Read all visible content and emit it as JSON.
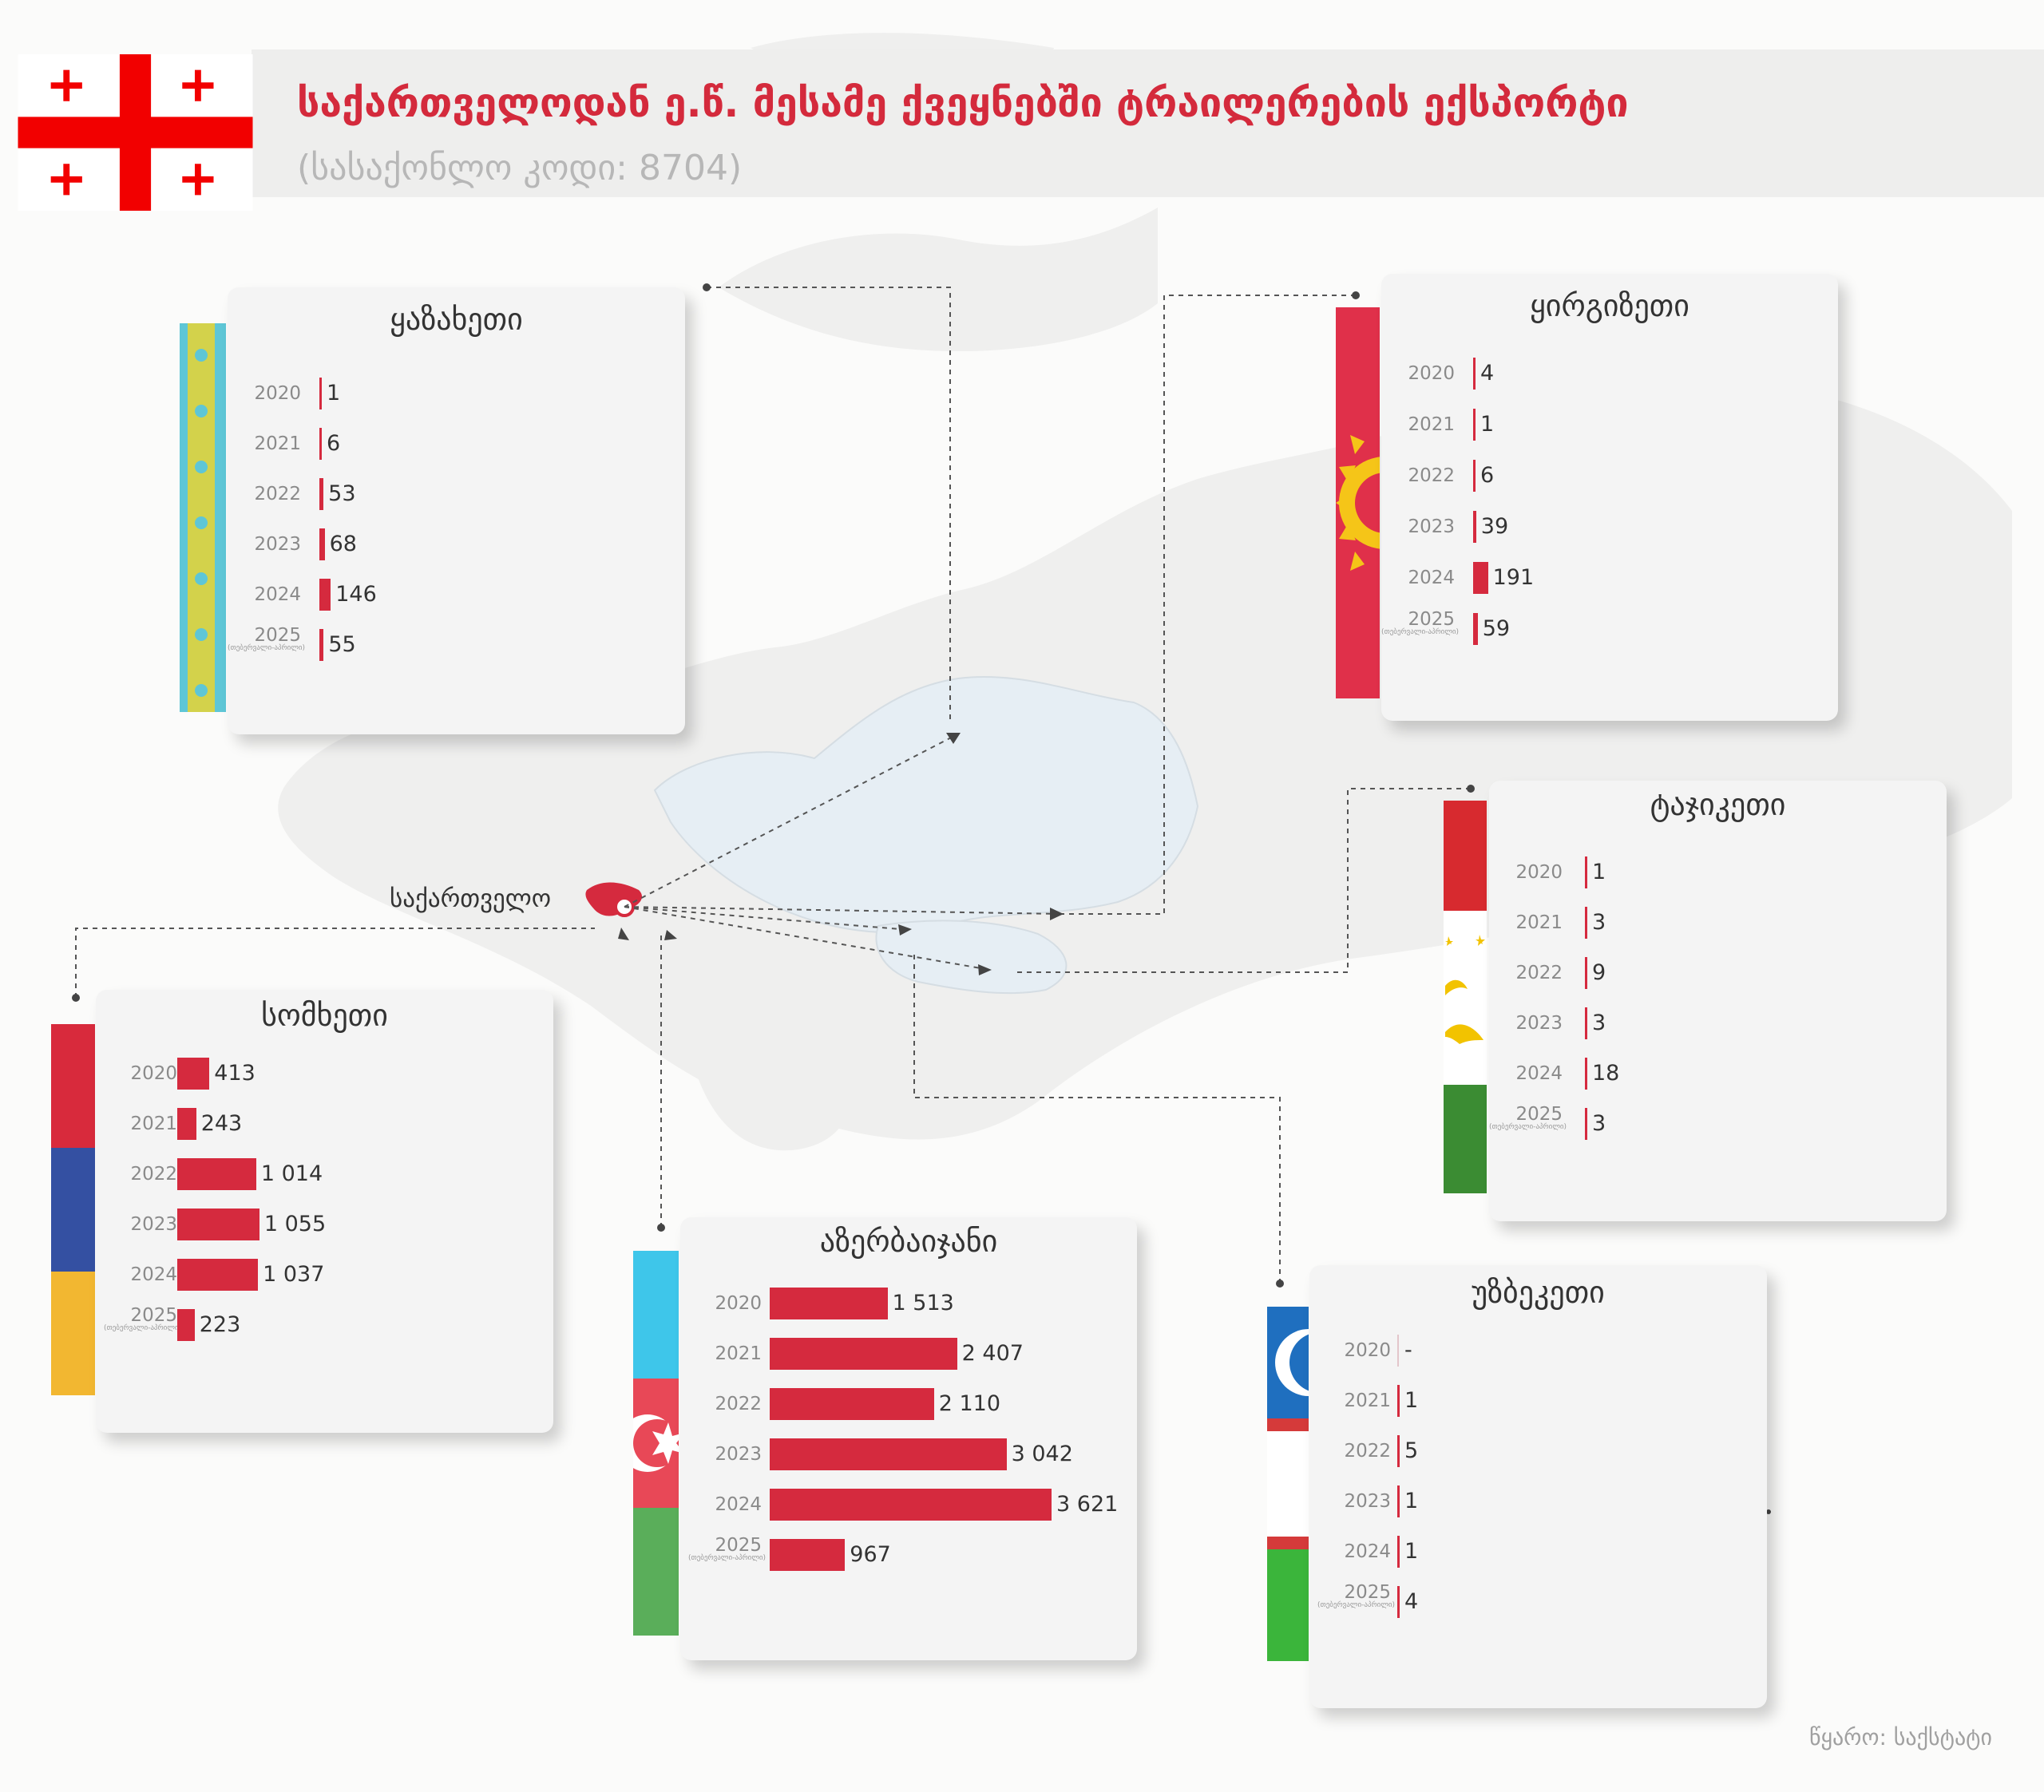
{
  "header": {
    "title": "საქართველოდან ე.წ. მესამე ქვეყნებში ტრაილერების ექსპორტი",
    "subtitle": "(სასაქონლო კოდი: 8704)"
  },
  "map_label": "საქართველო",
  "source": "წყარო: საქსტატი",
  "colors": {
    "accent": "#d52a3e",
    "title": "#d42a3c",
    "card_bg": "#f4f4f4"
  },
  "chart_data": [
    {
      "type": "bar",
      "country": "ყაზახეთი",
      "flag": "kazakhstan-flag",
      "categories": [
        "2020",
        "2021",
        "2022",
        "2023",
        "2024",
        "2025"
      ],
      "category_notes": [
        "",
        "",
        "",
        "",
        "",
        "(თებერვალი-აპრილი)"
      ],
      "values": [
        1,
        6,
        53,
        68,
        146,
        55
      ],
      "labels": [
        "1",
        "6",
        "53",
        "68",
        "146",
        "55"
      ]
    },
    {
      "type": "bar",
      "country": "ყირგიზეთი",
      "flag": "kyrgyzstan-flag",
      "categories": [
        "2020",
        "2021",
        "2022",
        "2023",
        "2024",
        "2025"
      ],
      "category_notes": [
        "",
        "",
        "",
        "",
        "",
        "(თებერვალი-აპრილი)"
      ],
      "values": [
        4,
        1,
        6,
        39,
        191,
        59
      ],
      "labels": [
        "4",
        "1",
        "6",
        "39",
        "191",
        "59"
      ]
    },
    {
      "type": "bar",
      "country": "ტაჯიკეთი",
      "flag": "tajikistan-flag",
      "categories": [
        "2020",
        "2021",
        "2022",
        "2023",
        "2024",
        "2025"
      ],
      "category_notes": [
        "",
        "",
        "",
        "",
        "",
        "(თებერვალი-აპრილი)"
      ],
      "values": [
        1,
        3,
        9,
        3,
        18,
        3
      ],
      "labels": [
        "1",
        "3",
        "9",
        "3",
        "18",
        "3"
      ]
    },
    {
      "type": "bar",
      "country": "სომხეთი",
      "flag": "armenia-flag",
      "categories": [
        "2020",
        "2021",
        "2022",
        "2023",
        "2024",
        "2025"
      ],
      "category_notes": [
        "",
        "",
        "",
        "",
        "",
        "(თებერვალი-აპრილი)"
      ],
      "values": [
        413,
        243,
        1014,
        1055,
        1037,
        223
      ],
      "labels": [
        "413",
        "243",
        "1 014",
        "1 055",
        "1 037",
        "223"
      ]
    },
    {
      "type": "bar",
      "country": "აზერბაიჯანი",
      "flag": "azerbaijan-flag",
      "categories": [
        "2020",
        "2021",
        "2022",
        "2023",
        "2024",
        "2025"
      ],
      "category_notes": [
        "",
        "",
        "",
        "",
        "",
        "(თებერვალი-აპრილი)"
      ],
      "values": [
        1513,
        2407,
        2110,
        3042,
        3621,
        967
      ],
      "labels": [
        "1 513",
        "2 407",
        "2 110",
        "3 042",
        "3 621",
        "967"
      ]
    },
    {
      "type": "bar",
      "country": "უზბეკეთი",
      "flag": "uzbekistan-flag",
      "categories": [
        "2020",
        "2021",
        "2022",
        "2023",
        "2024",
        "2025"
      ],
      "category_notes": [
        "",
        "",
        "",
        "",
        "",
        "(თებერვალი-აპრილი)"
      ],
      "values": [
        0,
        1,
        5,
        1,
        1,
        4
      ],
      "labels": [
        "-",
        "1",
        "5",
        "1",
        "1",
        "4"
      ]
    }
  ]
}
